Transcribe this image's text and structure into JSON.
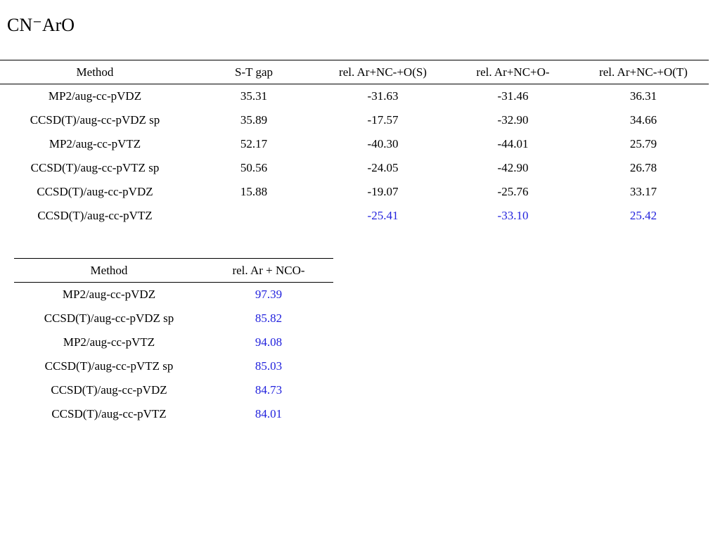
{
  "title": "CN⁻ArO",
  "colors": {
    "text": "#000000",
    "highlight": "#2222dd"
  },
  "table1": {
    "headers": [
      "Method",
      "S-T gap",
      "rel. Ar+NC-+O(S)",
      "rel. Ar+NC+O-",
      "rel. Ar+NC-+O(T)"
    ],
    "rows": [
      [
        "MP2/aug-cc-pVDZ",
        "35.31",
        "-31.63",
        "-31.46",
        "36.31"
      ],
      [
        "CCSD(T)/aug-cc-pVDZ sp",
        "35.89",
        "-17.57",
        "-32.90",
        "34.66"
      ],
      [
        "MP2/aug-cc-pVTZ",
        "52.17",
        "-40.30",
        "-44.01",
        "25.79"
      ],
      [
        "CCSD(T)/aug-cc-pVTZ sp",
        "50.56",
        "-24.05",
        "-42.90",
        "26.78"
      ],
      [
        "CCSD(T)/aug-cc-pVDZ",
        "15.88",
        "-19.07",
        "-25.76",
        "33.17"
      ],
      [
        "CCSD(T)/aug-cc-pVTZ",
        "",
        "-25.41",
        "-33.10",
        "25.42"
      ]
    ]
  },
  "table2": {
    "headers": [
      "Method",
      "rel. Ar + NCO-"
    ],
    "rows": [
      [
        "MP2/aug-cc-pVDZ",
        "97.39"
      ],
      [
        "CCSD(T)/aug-cc-pVDZ sp",
        "85.82"
      ],
      [
        "MP2/aug-cc-pVTZ",
        "94.08"
      ],
      [
        "CCSD(T)/aug-cc-pVTZ sp",
        "85.03"
      ],
      [
        "CCSD(T)/aug-cc-pVDZ",
        "84.73"
      ],
      [
        "CCSD(T)/aug-cc-pVTZ",
        "84.01"
      ]
    ]
  }
}
